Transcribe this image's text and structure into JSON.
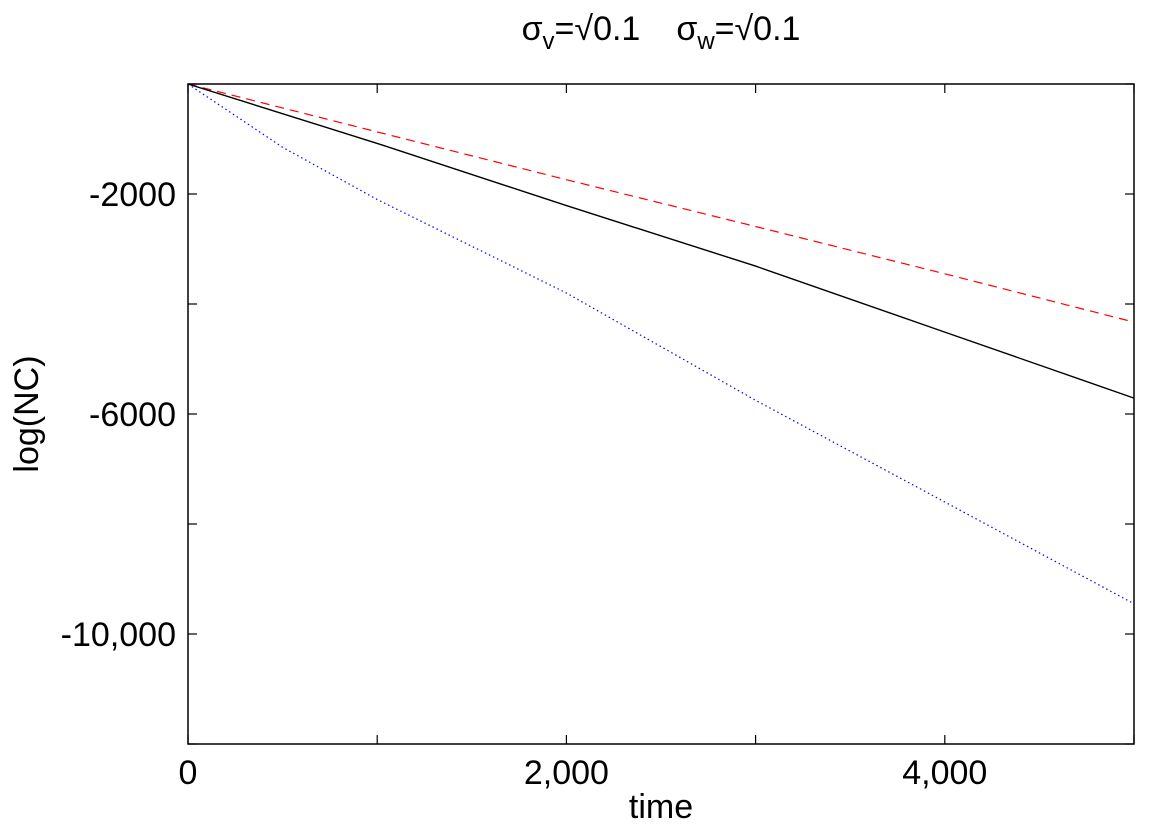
{
  "chart_data": {
    "type": "line",
    "title": {
      "part1_symbol": "σ",
      "part1_subscript": "v",
      "part1_value": "=√0.1",
      "part2_symbol": "σ",
      "part2_subscript": "w",
      "part2_value": "=√0.1"
    },
    "xlabel": "time",
    "ylabel": "log(NC)",
    "xlim": [
      0,
      5000
    ],
    "ylim": [
      -12000,
      0
    ],
    "x_ticks": [
      0,
      1000,
      2000,
      3000,
      4000,
      5000
    ],
    "x_tick_labels": [
      "0",
      "",
      "2,000",
      "",
      "4,000",
      ""
    ],
    "y_ticks": [
      -12000,
      -10000,
      -8000,
      -6000,
      -4000,
      -2000,
      0
    ],
    "y_tick_labels": [
      "",
      "-10,000",
      "",
      "-6000",
      "",
      "-2000",
      ""
    ],
    "grid": false,
    "series": [
      {
        "style": "dashed",
        "color": "#ff0000",
        "x": [
          0,
          1000,
          2000,
          3000,
          4000,
          5000
        ],
        "y": [
          0,
          -870,
          -1740,
          -2590,
          -3450,
          -4330
        ]
      },
      {
        "style": "solid",
        "color": "#000000",
        "x": [
          0,
          1000,
          2000,
          3000,
          4000,
          5000
        ],
        "y": [
          0,
          -1080,
          -2210,
          -3310,
          -4510,
          -5710
        ]
      },
      {
        "style": "dotted",
        "color": "#0000ff",
        "x": [
          0,
          500,
          1000,
          2000,
          3000,
          4000,
          5000
        ],
        "y": [
          0,
          -1150,
          -2100,
          -3800,
          -5750,
          -7600,
          -9450
        ]
      }
    ]
  }
}
